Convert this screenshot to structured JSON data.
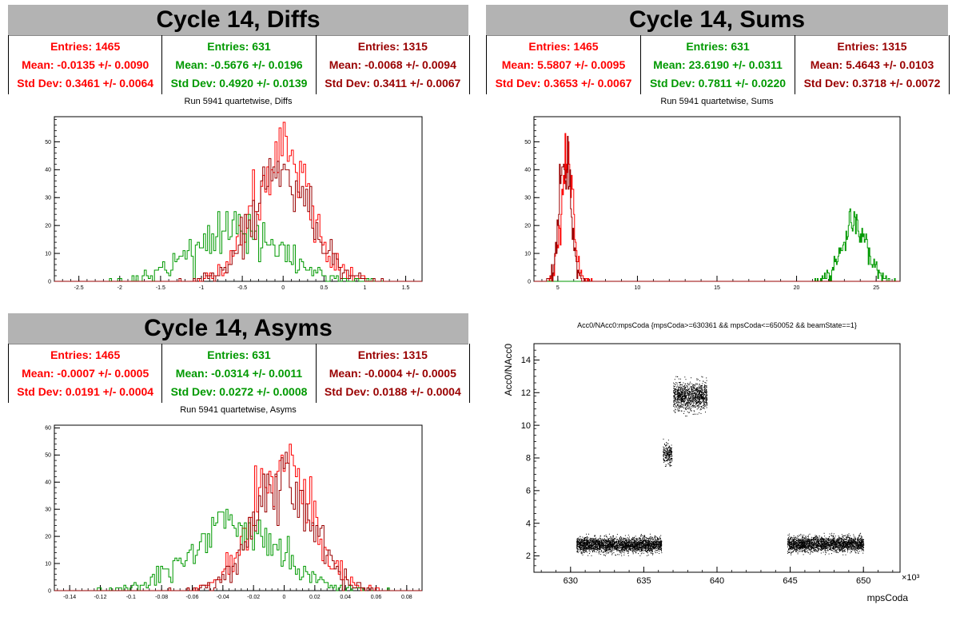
{
  "colors": {
    "red": "#ff0000",
    "green": "#009900",
    "darkred": "#990000",
    "title_bg": "#b3b3b3"
  },
  "diffs": {
    "title": "Cycle 14, Diffs",
    "subtitle": "Run 5941 quartetwise, Diffs",
    "stats": [
      {
        "entries": "Entries: 1465",
        "mean": "Mean: -0.0135 +/- 0.0090",
        "std": "Std Dev: 0.3461 +/- 0.0064"
      },
      {
        "entries": "Entries: 631",
        "mean": "Mean: -0.5676 +/- 0.0196",
        "std": "Std Dev: 0.4920 +/- 0.0139"
      },
      {
        "entries": "Entries: 1315",
        "mean": "Mean: -0.0068 +/- 0.0094",
        "std": "Std Dev: 0.3411 +/- 0.0067"
      }
    ]
  },
  "sums": {
    "title": "Cycle 14, Sums",
    "subtitle": "Run 5941 quartetwise, Sums",
    "stats": [
      {
        "entries": "Entries: 1465",
        "mean": "Mean: 5.5807 +/- 0.0095",
        "std": "Std Dev: 0.3653 +/- 0.0067"
      },
      {
        "entries": "Entries: 631",
        "mean": "Mean: 23.6190 +/- 0.0311",
        "std": "Std Dev: 0.7811 +/- 0.0220"
      },
      {
        "entries": "Entries: 1315",
        "mean": "Mean: 5.4643 +/- 0.0103",
        "std": "Std Dev: 0.3718 +/- 0.0072"
      }
    ]
  },
  "asyms": {
    "title": "Cycle 14, Asyms",
    "subtitle": "Run 5941 quartetwise, Asyms",
    "stats": [
      {
        "entries": "Entries: 1465",
        "mean": "Mean: -0.0007 +/- 0.0005",
        "std": "Std Dev: 0.0191 +/- 0.0004"
      },
      {
        "entries": "Entries: 631",
        "mean": "Mean: -0.0314 +/- 0.0011",
        "std": "Std Dev: 0.0272 +/- 0.0008"
      },
      {
        "entries": "Entries: 1315",
        "mean": "Mean: -0.0004 +/- 0.0005",
        "std": "Std Dev: 0.0188 +/- 0.0004"
      }
    ]
  },
  "scatter_panel": {
    "title": "Acc0/NAcc0:mpsCoda {mpsCoda>=630361 && mpsCoda<=650052 && beamState==1}",
    "xlabel": "mpsCoda",
    "ylabel": "Acc0/NAcc0",
    "exponent": "×10³"
  },
  "chart_data": [
    {
      "type": "histogram",
      "title": "Run 5941 quartetwise, Diffs",
      "xlim": [
        -2.8,
        1.7
      ],
      "ylim": [
        0,
        59
      ],
      "xticks": [
        -2.5,
        -2,
        -1.5,
        -1,
        -0.5,
        0,
        0.5,
        1,
        1.5
      ],
      "xtick_labels": [
        "-2.5",
        "-2",
        "-1.5",
        "-1",
        "-0.5",
        "0",
        "0.5",
        "1",
        "1.5"
      ],
      "yticks": [
        0,
        10,
        20,
        30,
        40,
        50
      ],
      "ytick_labels": [
        "0",
        "10",
        "20",
        "30",
        "40",
        "50"
      ],
      "series": [
        {
          "color": "#ff0000",
          "entries": 1465,
          "mean": -0.0135,
          "std": 0.3461,
          "peak": 57
        },
        {
          "color": "#009900",
          "entries": 631,
          "mean": -0.5676,
          "std": 0.492,
          "peak": 25
        },
        {
          "color": "#990000",
          "entries": 1315,
          "mean": -0.0068,
          "std": 0.3411,
          "peak": 52
        }
      ]
    },
    {
      "type": "histogram",
      "title": "Run 5941 quartetwise, Sums",
      "xlim": [
        3.5,
        26.5
      ],
      "ylim": [
        0,
        59
      ],
      "xticks": [
        5,
        10,
        15,
        20,
        25
      ],
      "xtick_labels": [
        "5",
        "10",
        "15",
        "20",
        "25"
      ],
      "yticks": [
        0,
        10,
        20,
        30,
        40,
        50
      ],
      "ytick_labels": [
        "0",
        "10",
        "20",
        "30",
        "40",
        "50"
      ],
      "series": [
        {
          "color": "#ff0000",
          "entries": 1465,
          "mean": 5.5807,
          "std": 0.3653,
          "peak": 56
        },
        {
          "color": "#009900",
          "entries": 631,
          "mean": 23.619,
          "std": 0.7811,
          "peak": 26
        },
        {
          "color": "#990000",
          "entries": 1315,
          "mean": 5.4643,
          "std": 0.3718,
          "peak": 52
        }
      ]
    },
    {
      "type": "histogram",
      "title": "Run 5941 quartetwise, Asyms",
      "xlim": [
        -0.15,
        0.09
      ],
      "ylim": [
        0,
        61
      ],
      "xticks": [
        -0.14,
        -0.12,
        -0.1,
        -0.08,
        -0.06,
        -0.04,
        -0.02,
        0,
        0.02,
        0.04,
        0.06,
        0.08
      ],
      "xtick_labels": [
        "-0.14",
        "-0.12",
        "-0.1",
        "-0.08",
        "-0.06",
        "-0.04",
        "-0.02",
        "0",
        "0.02",
        "0.04",
        "0.06",
        "0.08"
      ],
      "yticks": [
        0,
        10,
        20,
        30,
        40,
        50,
        60
      ],
      "ytick_labels": [
        "0",
        "10",
        "20",
        "30",
        "40",
        "50",
        "60"
      ],
      "series": [
        {
          "color": "#ff0000",
          "entries": 1465,
          "mean": -0.0007,
          "std": 0.0191,
          "peak": 57
        },
        {
          "color": "#009900",
          "entries": 631,
          "mean": -0.0314,
          "std": 0.0272,
          "peak": 30
        },
        {
          "color": "#990000",
          "entries": 1315,
          "mean": -0.0004,
          "std": 0.0188,
          "peak": 52
        }
      ]
    },
    {
      "type": "scatter",
      "title": "Acc0/NAcc0:mpsCoda {mpsCoda>=630361 && mpsCoda<=650052 && beamState==1}",
      "xlabel": "mpsCoda",
      "ylabel": "Acc0/NAcc0",
      "xlim": [
        627.5,
        652.5
      ],
      "ylim": [
        1,
        15
      ],
      "xticks": [
        630,
        635,
        640,
        645,
        650
      ],
      "xtick_labels": [
        "630",
        "635",
        "640",
        "645",
        "650"
      ],
      "yticks": [
        2,
        4,
        6,
        8,
        10,
        12,
        14
      ],
      "ytick_labels": [
        "2",
        "4",
        "6",
        "8",
        "10",
        "12",
        "14"
      ],
      "clusters": [
        {
          "x": [
            630.4,
            636.2
          ],
          "y_center": 2.7,
          "y_spread": 0.3,
          "n": 2600
        },
        {
          "x": [
            636.3,
            636.9
          ],
          "y_center": 8.3,
          "y_spread": 0.4,
          "n": 220
        },
        {
          "x": [
            637.0,
            639.3
          ],
          "y_center": 11.8,
          "y_spread": 0.55,
          "n": 1100
        },
        {
          "x": [
            644.8,
            650.0
          ],
          "y_center": 2.75,
          "y_spread": 0.3,
          "n": 2300
        }
      ]
    }
  ]
}
